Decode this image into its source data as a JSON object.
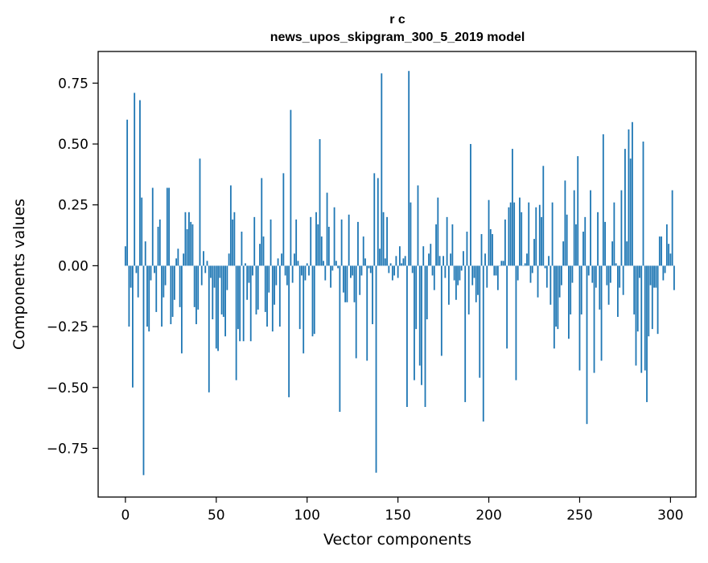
{
  "chart_data": {
    "type": "bar",
    "title_line1": "r c",
    "title_line2": "news_upos_skipgram_300_5_2019 model",
    "xlabel": "Vector components",
    "ylabel": "Components values",
    "xlim": [
      -15,
      314
    ],
    "ylim": [
      -0.95,
      0.88
    ],
    "xticks": [
      0,
      50,
      100,
      150,
      200,
      250,
      300
    ],
    "xtick_labels": [
      "0",
      "50",
      "100",
      "150",
      "200",
      "250",
      "300"
    ],
    "yticks": [
      0.75,
      0.5,
      0.25,
      0.0,
      -0.25,
      -0.5,
      -0.75
    ],
    "ytick_labels": [
      "0.75",
      "0.50",
      "0.25",
      "0.00",
      "−0.25",
      "−0.50",
      "−0.75"
    ],
    "bar_color": "#1f77b4",
    "values": [
      0.08,
      0.6,
      -0.25,
      -0.09,
      -0.5,
      0.71,
      -0.03,
      -0.13,
      0.68,
      0.28,
      -0.86,
      0.1,
      -0.25,
      -0.27,
      -0.06,
      0.32,
      -0.03,
      -0.19,
      0.16,
      0.19,
      -0.25,
      -0.13,
      -0.08,
      0.32,
      0.32,
      -0.24,
      -0.21,
      -0.14,
      0.03,
      0.07,
      -0.17,
      -0.36,
      0.05,
      0.22,
      0.15,
      0.22,
      0.18,
      0.17,
      -0.17,
      -0.24,
      -0.18,
      0.44,
      -0.08,
      0.06,
      -0.03,
      0.02,
      -0.52,
      -0.05,
      -0.22,
      -0.09,
      -0.34,
      -0.35,
      -0.05,
      -0.2,
      -0.21,
      -0.29,
      -0.1,
      0.05,
      0.33,
      0.19,
      0.22,
      -0.47,
      -0.26,
      -0.31,
      0.14,
      -0.31,
      0.01,
      -0.14,
      -0.07,
      -0.31,
      -0.04,
      0.2,
      -0.2,
      -0.18,
      0.09,
      0.36,
      0.12,
      -0.19,
      -0.25,
      -0.11,
      0.19,
      -0.27,
      -0.16,
      -0.08,
      0.03,
      -0.25,
      0.05,
      0.38,
      -0.04,
      -0.08,
      -0.54,
      0.64,
      -0.07,
      0.05,
      0.19,
      0.02,
      -0.26,
      -0.04,
      -0.36,
      -0.06,
      0.01,
      -0.04,
      0.2,
      -0.29,
      -0.28,
      0.22,
      0.17,
      0.52,
      0.12,
      0.02,
      -0.06,
      0.3,
      0.16,
      -0.09,
      -0.02,
      0.24,
      0.02,
      -0.01,
      -0.6,
      0.19,
      -0.11,
      -0.15,
      -0.15,
      0.21,
      -0.05,
      -0.04,
      -0.15,
      -0.38,
      0.18,
      -0.12,
      -0.04,
      0.12,
      0.03,
      -0.39,
      -0.01,
      -0.03,
      -0.24,
      0.38,
      -0.85,
      0.36,
      0.07,
      0.79,
      0.22,
      0.03,
      0.2,
      -0.03,
      0.01,
      -0.06,
      -0.04,
      0.04,
      -0.05,
      0.08,
      0.01,
      0.03,
      0.04,
      -0.58,
      0.8,
      0.26,
      -0.03,
      -0.47,
      -0.26,
      0.33,
      -0.41,
      -0.49,
      0.08,
      -0.58,
      -0.22,
      0.05,
      0.09,
      -0.04,
      -0.1,
      0.17,
      0.28,
      0.04,
      -0.37,
      0.04,
      -0.05,
      0.2,
      -0.16,
      0.05,
      0.17,
      -0.06,
      -0.14,
      -0.08,
      -0.06,
      -0.02,
      0.06,
      -0.56,
      0.14,
      -0.2,
      0.5,
      -0.08,
      -0.05,
      -0.15,
      -0.12,
      -0.46,
      0.13,
      -0.64,
      0.05,
      -0.09,
      0.27,
      0.15,
      0.13,
      -0.04,
      -0.04,
      -0.1,
      0.0,
      0.02,
      0.02,
      0.19,
      -0.34,
      0.24,
      0.26,
      0.48,
      0.26,
      -0.47,
      -0.06,
      0.28,
      0.22,
      0.0,
      0.01,
      0.05,
      0.26,
      -0.07,
      -0.03,
      0.11,
      0.24,
      -0.13,
      0.25,
      0.2,
      0.41,
      -0.01,
      -0.09,
      0.04,
      -0.16,
      0.26,
      -0.34,
      -0.25,
      -0.26,
      -0.13,
      -0.08,
      0.1,
      0.35,
      0.21,
      -0.3,
      -0.2,
      -0.07,
      0.31,
      0.17,
      0.45,
      -0.43,
      -0.2,
      0.14,
      0.2,
      -0.65,
      -0.04,
      0.31,
      -0.07,
      -0.44,
      -0.09,
      0.22,
      -0.18,
      -0.39,
      0.54,
      0.18,
      -0.08,
      -0.16,
      -0.07,
      0.1,
      0.26,
      0.01,
      -0.21,
      -0.09,
      0.31,
      -0.12,
      0.48,
      0.1,
      0.56,
      0.44,
      0.59,
      -0.2,
      -0.41,
      -0.27,
      -0.05,
      -0.44,
      0.51,
      -0.43,
      -0.56,
      -0.29,
      -0.08,
      -0.26,
      -0.09,
      -0.09,
      -0.28,
      0.12,
      0.12,
      -0.06,
      -0.03,
      0.17,
      0.09,
      0.05,
      0.31,
      -0.1
    ]
  }
}
